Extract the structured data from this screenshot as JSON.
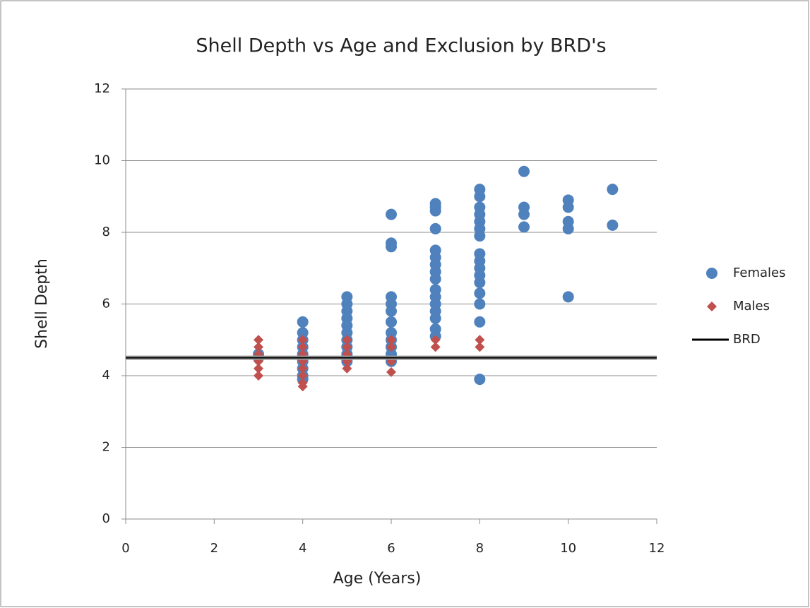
{
  "chart_data": {
    "type": "scatter",
    "title": "Shell Depth vs Age and Exclusion by BRD's",
    "x_label": "Age (Years)",
    "y_label": "Shell Depth",
    "xlim": [
      0,
      12
    ],
    "xticks": [
      0,
      2,
      4,
      6,
      8,
      10,
      12
    ],
    "ylim": [
      0,
      12
    ],
    "yticks": [
      0,
      2,
      4,
      6,
      8,
      10,
      12
    ],
    "grid": true,
    "legend": "right",
    "series": [
      {
        "name": "Females",
        "color": "#4f81bd",
        "marker": "circle",
        "x": [
          3,
          3,
          4,
          4,
          4,
          4,
          4,
          4,
          4,
          4,
          4,
          5,
          5,
          5,
          5,
          5,
          5,
          5,
          5,
          5,
          5,
          6,
          6,
          6,
          6,
          6,
          6,
          6,
          6,
          6,
          6,
          6,
          6,
          7,
          7,
          7,
          7,
          7,
          7,
          7,
          7,
          7,
          7,
          7,
          7,
          7,
          7,
          7,
          7,
          8,
          8,
          8,
          8,
          8,
          8,
          8,
          8,
          8,
          8,
          8,
          8,
          8,
          8,
          8,
          8,
          9,
          9,
          9,
          9,
          10,
          10,
          10,
          10,
          10,
          11,
          11
        ],
        "values": [
          4.6,
          4.5,
          5.5,
          5.2,
          5.0,
          4.8,
          4.6,
          4.4,
          4.2,
          4.0,
          3.9,
          6.2,
          6.0,
          5.8,
          5.6,
          5.4,
          5.2,
          5.0,
          4.8,
          4.6,
          4.4,
          8.5,
          7.7,
          7.6,
          6.2,
          6.0,
          5.8,
          5.5,
          5.2,
          5.0,
          4.8,
          4.6,
          4.4,
          8.8,
          8.7,
          8.6,
          8.1,
          7.5,
          7.3,
          7.1,
          6.9,
          6.7,
          6.4,
          6.2,
          6.0,
          5.8,
          5.6,
          5.3,
          5.1,
          9.2,
          9.0,
          8.7,
          8.5,
          8.3,
          8.1,
          7.9,
          7.4,
          7.2,
          7.0,
          6.8,
          6.6,
          6.3,
          6.0,
          5.5,
          3.9,
          9.7,
          8.7,
          8.5,
          8.15,
          8.9,
          8.7,
          8.3,
          8.1,
          6.2,
          9.2,
          8.2
        ]
      },
      {
        "name": "Males",
        "color": "#c0504d",
        "marker": "diamond",
        "x": [
          3,
          3,
          3,
          3,
          3,
          3,
          4,
          4,
          4,
          4,
          4,
          4,
          4,
          4,
          5,
          5,
          5,
          5,
          5,
          6,
          6,
          6,
          6,
          7,
          7,
          8,
          8
        ],
        "values": [
          5.0,
          4.8,
          4.6,
          4.4,
          4.2,
          4.0,
          5.0,
          4.8,
          4.6,
          4.4,
          4.2,
          4.0,
          3.8,
          3.7,
          5.0,
          4.8,
          4.6,
          4.4,
          4.2,
          5.0,
          4.8,
          4.4,
          4.1,
          5.0,
          4.8,
          5.0,
          4.8
        ]
      },
      {
        "name": "BRD",
        "color": "#000000",
        "marker": "line",
        "x": [
          0,
          12
        ],
        "values": [
          4.5,
          4.5
        ]
      }
    ]
  }
}
